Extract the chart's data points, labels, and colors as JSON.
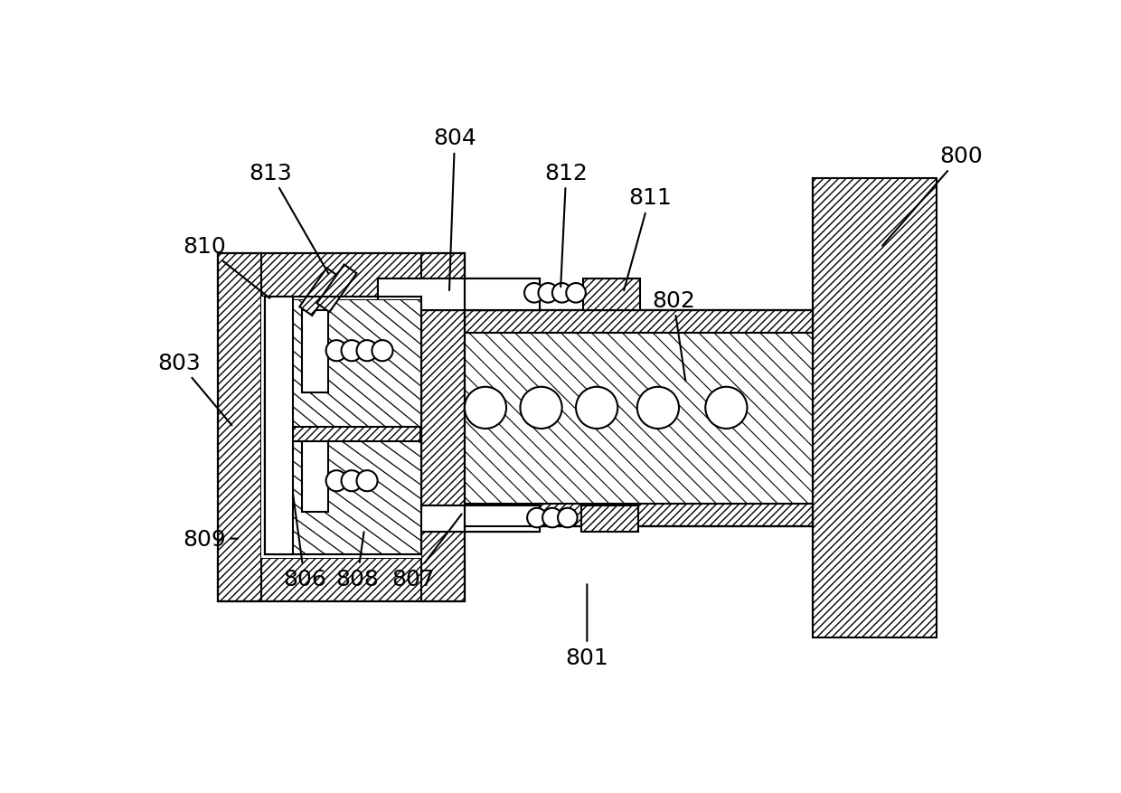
{
  "bg_color": "#ffffff",
  "lw": 1.5,
  "figsize": [
    12.4,
    8.78
  ],
  "dpi": 100
}
